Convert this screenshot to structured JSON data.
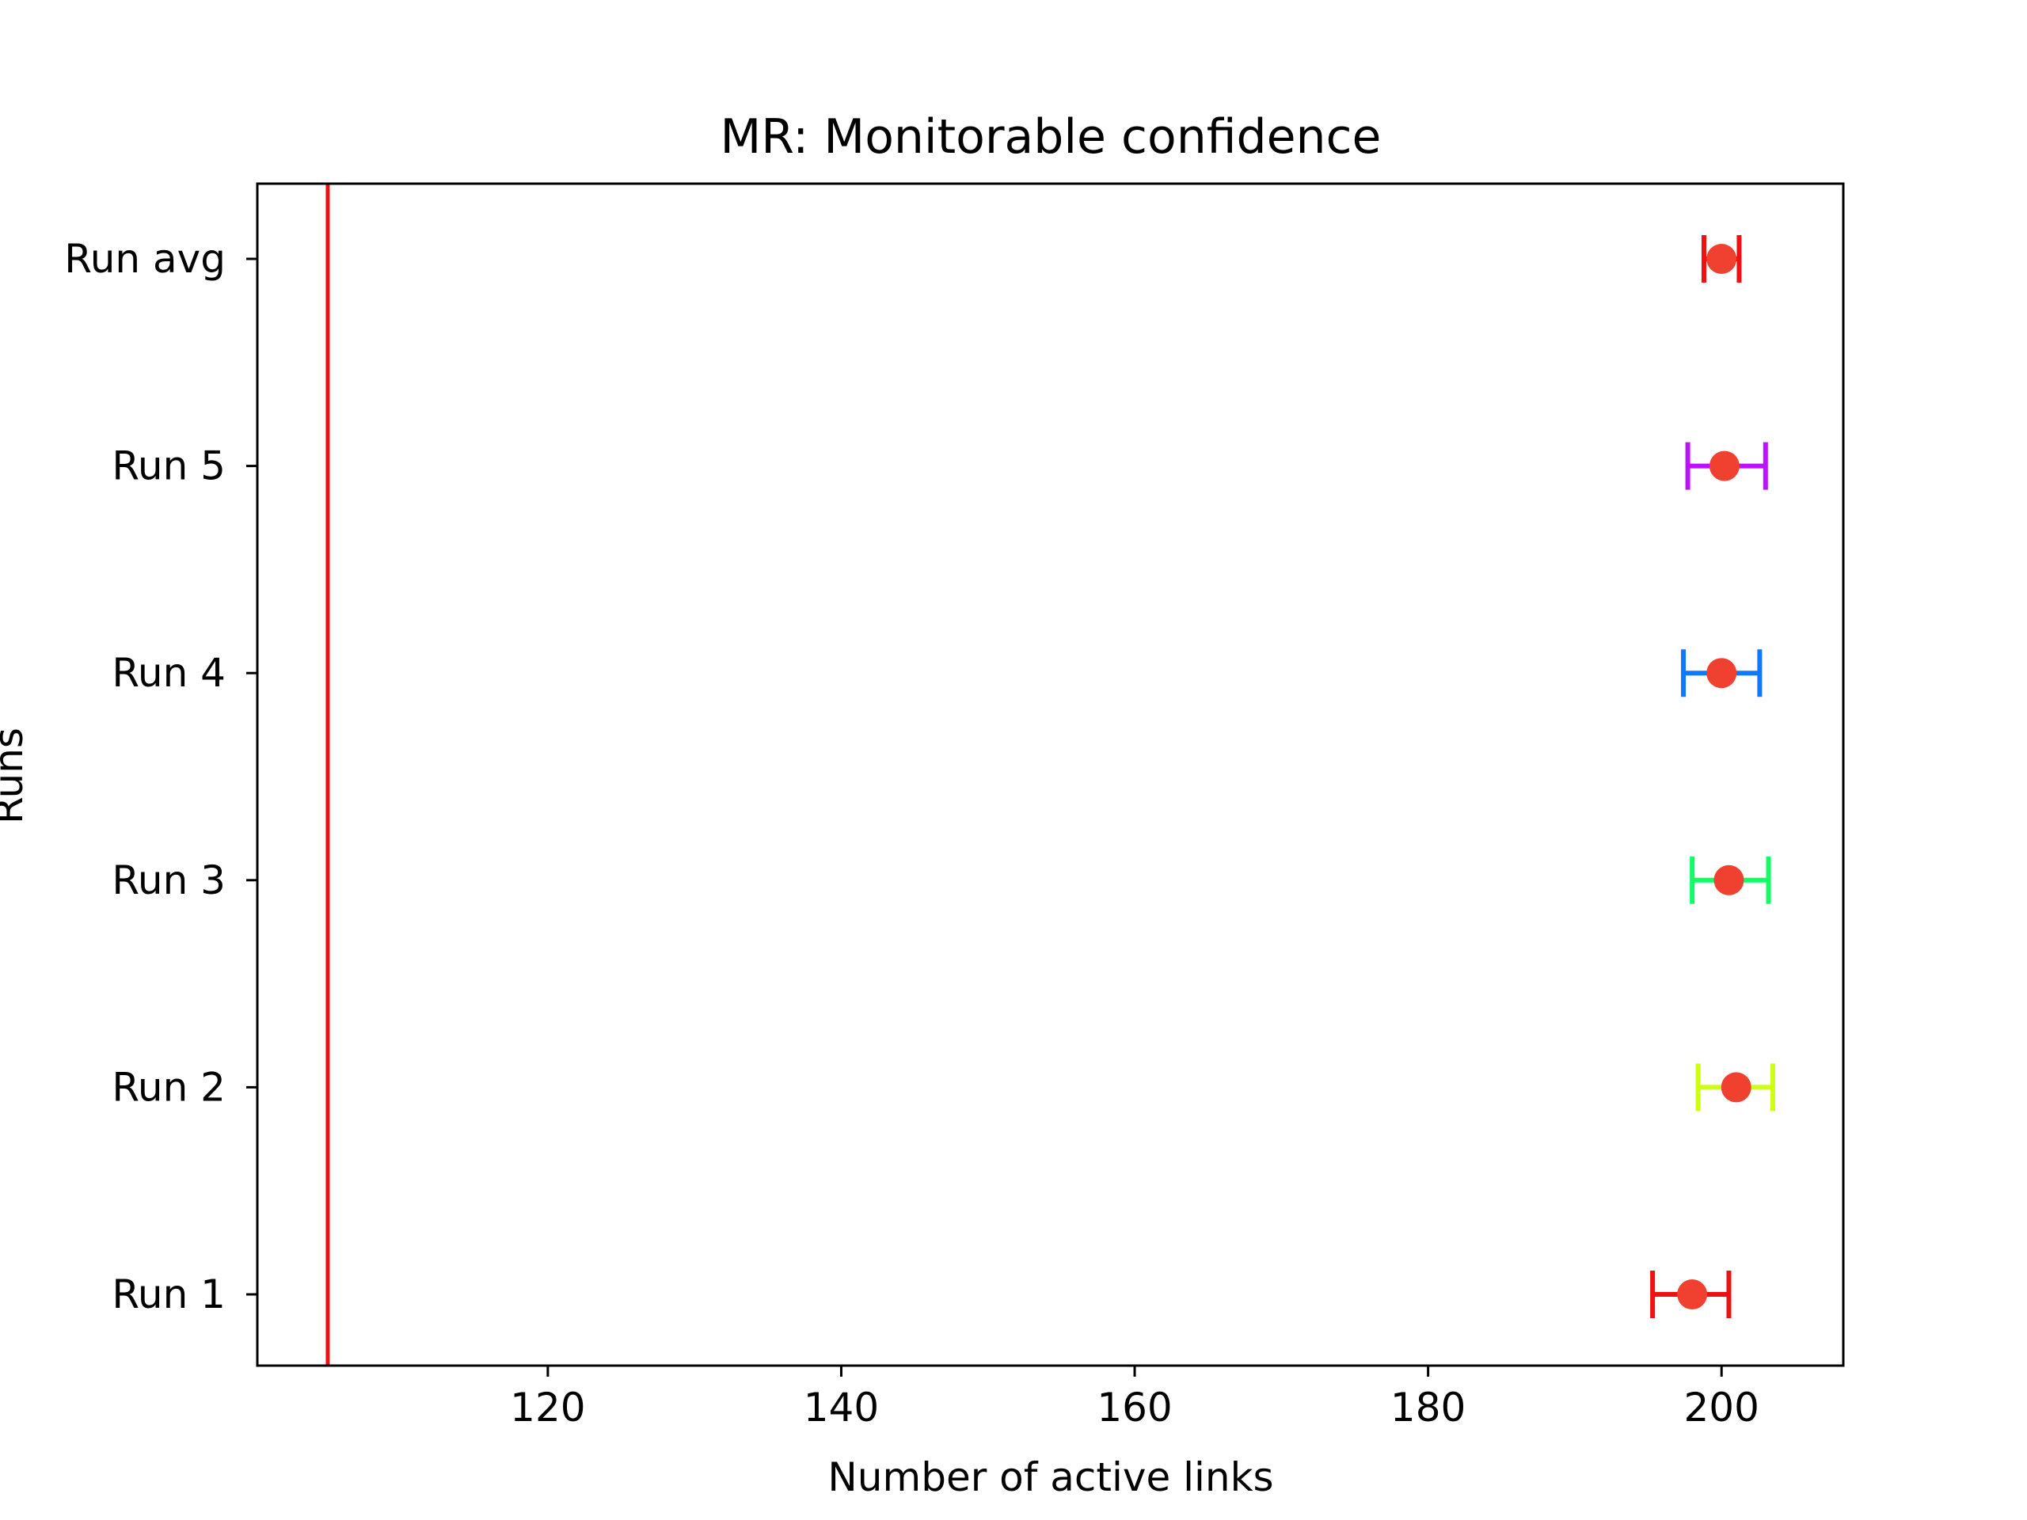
{
  "chart_data": {
    "type": "scatter",
    "subtype": "errorbar",
    "title": "MR: Monitorable confidence",
    "xlabel": "Number of active links",
    "ylabel": "Runs",
    "xlim": [
      100.2,
      208.3
    ],
    "x_ticks": [
      120,
      140,
      160,
      180,
      200
    ],
    "categories": [
      "Run 1",
      "Run 2",
      "Run 3",
      "Run 4",
      "Run 5",
      "Run avg"
    ],
    "points": [
      {
        "label": "Run 1",
        "value": 198.0,
        "lower": 195.3,
        "upper": 200.5,
        "color": "#ee1111"
      },
      {
        "label": "Run 2",
        "value": 201.0,
        "lower": 198.4,
        "upper": 203.5,
        "color": "#ccff11"
      },
      {
        "label": "Run 3",
        "value": 200.5,
        "lower": 198.0,
        "upper": 203.2,
        "color": "#11ff66"
      },
      {
        "label": "Run 4",
        "value": 200.0,
        "lower": 197.4,
        "upper": 202.6,
        "color": "#1177ff"
      },
      {
        "label": "Run 5",
        "value": 200.2,
        "lower": 197.7,
        "upper": 203.0,
        "color": "#bb11ff"
      },
      {
        "label": "Run avg",
        "value": 200.0,
        "lower": 198.8,
        "upper": 201.2,
        "color": "#ee1111"
      }
    ],
    "reference_line": {
      "x": 105.0,
      "color": "#ee1111"
    },
    "marker_color": "#f04030",
    "grid": false,
    "legend": "none"
  }
}
